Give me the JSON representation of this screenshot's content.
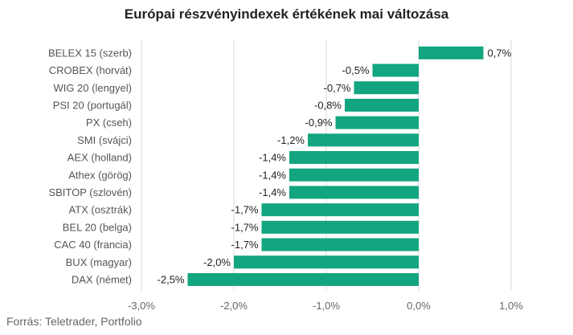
{
  "chart_data": {
    "type": "bar",
    "orientation": "horizontal",
    "title": "Európai részvényindexek értékének mai változása",
    "source": "Forrás: Teletrader, Portfolio",
    "categories": [
      "BELEX 15 (szerb)",
      "CROBEX (horvát)",
      "WIG 20 (lengyel)",
      "PSI 20 (portugál)",
      "PX (cseh)",
      "SMI (svájci)",
      "AEX (holland)",
      "Athex (görög)",
      "SBITOP (szlovén)",
      "ATX (osztrák)",
      "BEL 20 (belga)",
      "CAC 40 (francia)",
      "BUX (magyar)",
      "DAX (német)"
    ],
    "values": [
      0.7,
      -0.5,
      -0.7,
      -0.8,
      -0.9,
      -1.2,
      -1.4,
      -1.4,
      -1.4,
      -1.7,
      -1.7,
      -1.7,
      -2.0,
      -2.5
    ],
    "value_labels": [
      "0,7%",
      "-0,5%",
      "-0,7%",
      "-0,8%",
      "-0,9%",
      "-1,2%",
      "-1,4%",
      "-1,4%",
      "-1,4%",
      "-1,7%",
      "-1,7%",
      "-1,7%",
      "-2,0%",
      "-2,5%"
    ],
    "xlim": [
      -3.0,
      1.0
    ],
    "x_ticks": [
      -3.0,
      -2.0,
      -1.0,
      0.0,
      1.0
    ],
    "x_tick_labels": [
      "-3,0%",
      "-2,0%",
      "-1,0%",
      "0,0%",
      "1,0%"
    ],
    "grid": "vertical",
    "bar_color": "#12a57f",
    "grid_color": "#d9d9d9"
  }
}
